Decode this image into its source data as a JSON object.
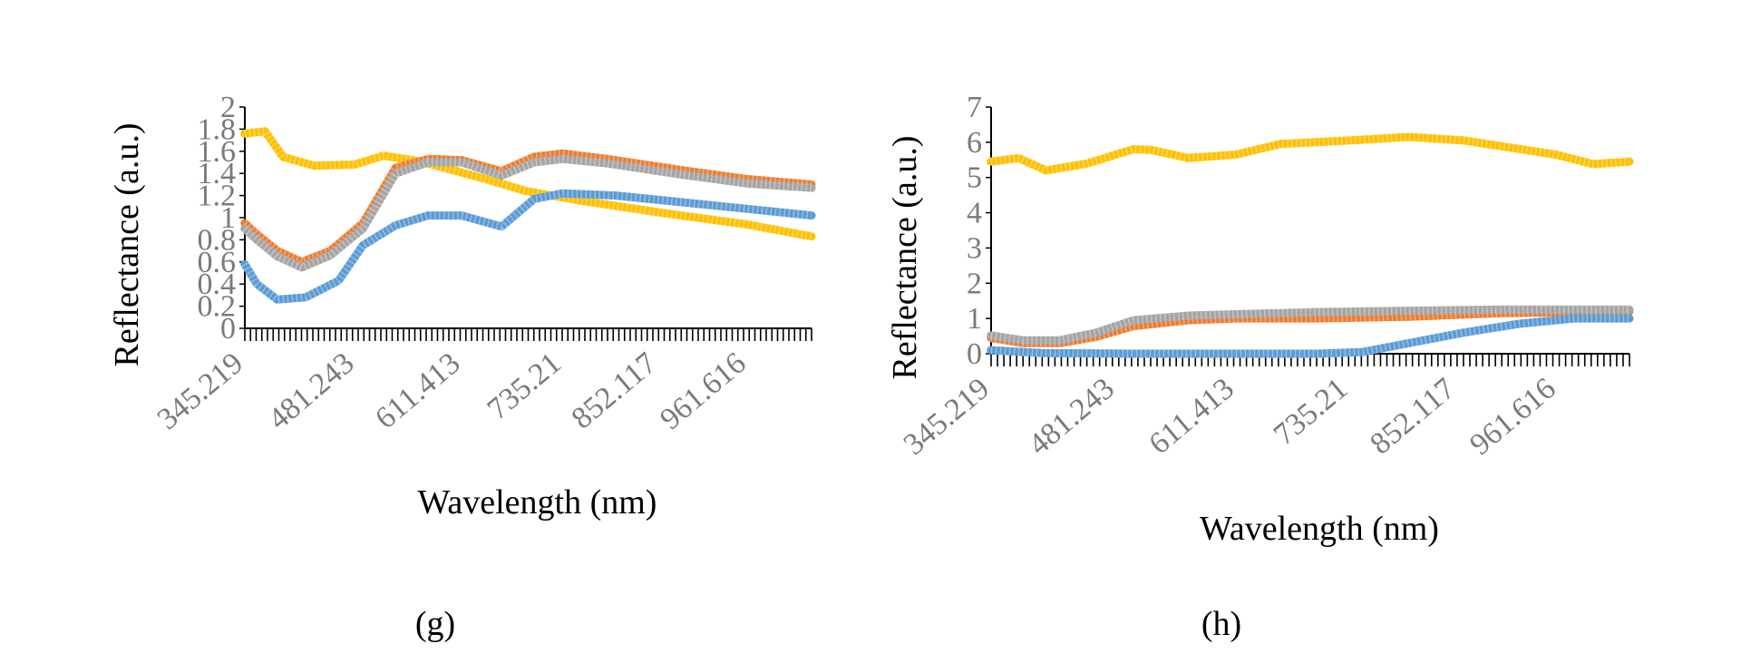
{
  "chart_data": [
    {
      "type": "line",
      "panel_label": "(g)",
      "xlabel": "Wavelength (nm)",
      "ylabel": "Reflectance (a.u.)",
      "x_tick_labels": [
        "345.219",
        "481.243",
        "611.413",
        "735.21",
        "852.117",
        "961.616"
      ],
      "x_tick_values": [
        345.219,
        481.243,
        611.413,
        735.21,
        852.117,
        961.616
      ],
      "xlim": [
        345.219,
        1040
      ],
      "y_tick_labels": [
        "0",
        "0.2",
        "0.4",
        "0.6",
        "0.8",
        "1",
        "1.2",
        "1.4",
        "1.6",
        "1.8",
        "2"
      ],
      "y_tick_values": [
        0,
        0.2,
        0.4,
        0.6,
        0.8,
        1,
        1.2,
        1.4,
        1.6,
        1.8,
        2
      ],
      "ylim": [
        0,
        2
      ],
      "grid": false,
      "legend": "none",
      "series": [
        {
          "color": "#ffc000",
          "x": [
            345,
            370,
            392,
            430,
            480,
            515,
            560,
            640,
            690,
            760,
            860,
            960,
            1040
          ],
          "y": [
            1.76,
            1.78,
            1.55,
            1.47,
            1.48,
            1.56,
            1.51,
            1.35,
            1.24,
            1.15,
            1.04,
            0.94,
            0.83
          ]
        },
        {
          "color": "#ed7d31",
          "x": [
            345,
            360,
            385,
            415,
            450,
            490,
            530,
            570,
            611,
            660,
            700,
            735,
            790,
            880,
            960,
            1040
          ],
          "y": [
            0.95,
            0.85,
            0.7,
            0.6,
            0.7,
            0.95,
            1.45,
            1.53,
            1.52,
            1.42,
            1.55,
            1.58,
            1.53,
            1.43,
            1.35,
            1.3
          ]
        },
        {
          "color": "#a5a5a5",
          "x": [
            345,
            360,
            385,
            415,
            450,
            490,
            530,
            570,
            611,
            660,
            700,
            735,
            790,
            880,
            960,
            1040
          ],
          "y": [
            0.9,
            0.8,
            0.65,
            0.55,
            0.66,
            0.9,
            1.4,
            1.5,
            1.5,
            1.38,
            1.5,
            1.53,
            1.49,
            1.39,
            1.31,
            1.27
          ]
        },
        {
          "color": "#5b9bd5",
          "x": [
            345,
            360,
            385,
            420,
            460,
            490,
            530,
            570,
            611,
            660,
            700,
            735,
            800,
            880,
            960,
            1040
          ],
          "y": [
            0.58,
            0.4,
            0.26,
            0.28,
            0.43,
            0.75,
            0.93,
            1.02,
            1.02,
            0.92,
            1.17,
            1.22,
            1.2,
            1.14,
            1.08,
            1.02
          ]
        }
      ]
    },
    {
      "type": "line",
      "panel_label": "(h)",
      "xlabel": "Wavelength (nm)",
      "ylabel": "Reflectance (a.u.)",
      "x_tick_labels": [
        "345.219",
        "481.243",
        "611.413",
        "735.21",
        "852.117",
        "961.616"
      ],
      "x_tick_values": [
        345.219,
        481.243,
        611.413,
        735.21,
        852.117,
        961.616
      ],
      "xlim": [
        345.219,
        1040
      ],
      "y_tick_labels": [
        "0",
        "1",
        "2",
        "3",
        "4",
        "5",
        "6",
        "7"
      ],
      "y_tick_values": [
        0,
        1,
        2,
        3,
        4,
        5,
        6,
        7
      ],
      "ylim": [
        0,
        7
      ],
      "grid": false,
      "legend": "none",
      "series": [
        {
          "color": "#ffc000",
          "x": [
            345,
            375,
            405,
            450,
            500,
            520,
            560,
            611,
            660,
            735,
            800,
            860,
            960,
            1000,
            1040
          ],
          "y": [
            5.45,
            5.55,
            5.2,
            5.4,
            5.8,
            5.78,
            5.55,
            5.65,
            5.95,
            6.05,
            6.15,
            6.05,
            5.65,
            5.38,
            5.45
          ]
        },
        {
          "color": "#ed7d31",
          "x": [
            345,
            380,
            420,
            460,
            500,
            560,
            611,
            700,
            800,
            900,
            1040
          ],
          "y": [
            0.45,
            0.3,
            0.3,
            0.48,
            0.78,
            0.95,
            1.0,
            1.0,
            1.05,
            1.15,
            1.2
          ]
        },
        {
          "color": "#a5a5a5",
          "x": [
            345,
            380,
            420,
            460,
            500,
            560,
            611,
            700,
            800,
            900,
            1040
          ],
          "y": [
            0.52,
            0.38,
            0.38,
            0.6,
            0.95,
            1.08,
            1.12,
            1.18,
            1.22,
            1.25,
            1.25
          ]
        },
        {
          "color": "#5b9bd5",
          "x": [
            345,
            400,
            500,
            600,
            700,
            750,
            800,
            860,
            920,
            980,
            1040
          ],
          "y": [
            0.1,
            0.02,
            0.0,
            0.0,
            0.0,
            0.05,
            0.3,
            0.6,
            0.85,
            1.0,
            1.0
          ]
        }
      ]
    }
  ]
}
